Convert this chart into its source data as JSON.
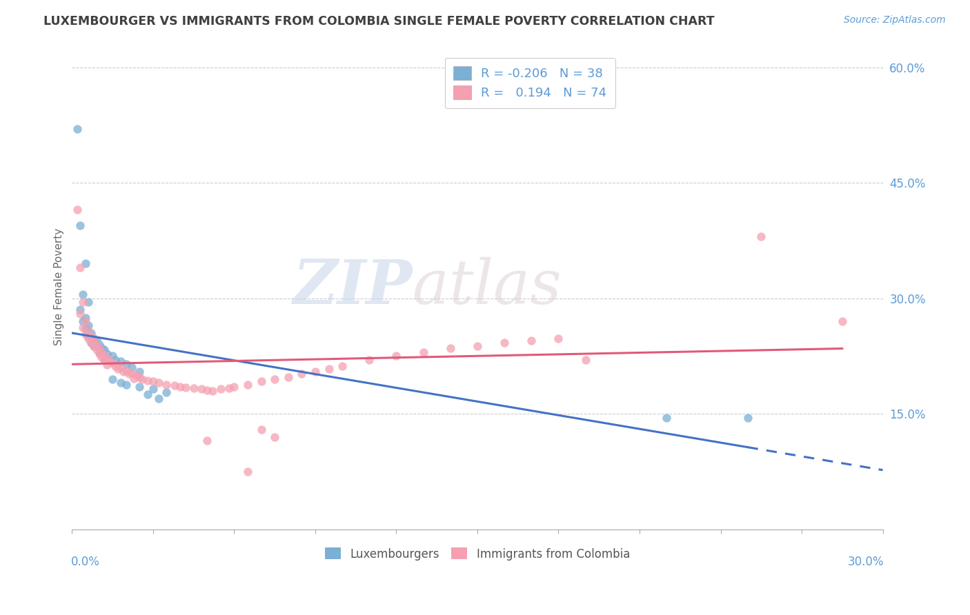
{
  "title": "LUXEMBOURGER VS IMMIGRANTS FROM COLOMBIA SINGLE FEMALE POVERTY CORRELATION CHART",
  "source": "Source: ZipAtlas.com",
  "xmin": 0.0,
  "xmax": 0.3,
  "ymin": 0.0,
  "ymax": 0.63,
  "ylabel_ticks": [
    0.0,
    0.15,
    0.3,
    0.45,
    0.6
  ],
  "ylabel_labels": [
    "",
    "15.0%",
    "30.0%",
    "45.0%",
    "60.0%"
  ],
  "watermark_zip": "ZIP",
  "watermark_atlas": "atlas",
  "blue_color": "#7bafd4",
  "pink_color": "#f4a0b0",
  "blue_line_color": "#4472c4",
  "pink_line_color": "#e05a7a",
  "blue_scatter": [
    [
      0.002,
      0.52
    ],
    [
      0.003,
      0.395
    ],
    [
      0.005,
      0.345
    ],
    [
      0.004,
      0.305
    ],
    [
      0.006,
      0.295
    ],
    [
      0.003,
      0.285
    ],
    [
      0.005,
      0.275
    ],
    [
      0.004,
      0.27
    ],
    [
      0.006,
      0.265
    ],
    [
      0.005,
      0.26
    ],
    [
      0.007,
      0.255
    ],
    [
      0.006,
      0.25
    ],
    [
      0.008,
      0.248
    ],
    [
      0.009,
      0.245
    ],
    [
      0.007,
      0.242
    ],
    [
      0.01,
      0.24
    ],
    [
      0.008,
      0.238
    ],
    [
      0.011,
      0.235
    ],
    [
      0.012,
      0.233
    ],
    [
      0.01,
      0.23
    ],
    [
      0.013,
      0.228
    ],
    [
      0.015,
      0.225
    ],
    [
      0.012,
      0.222
    ],
    [
      0.016,
      0.22
    ],
    [
      0.018,
      0.218
    ],
    [
      0.02,
      0.215
    ],
    [
      0.022,
      0.21
    ],
    [
      0.025,
      0.205
    ],
    [
      0.015,
      0.195
    ],
    [
      0.018,
      0.19
    ],
    [
      0.02,
      0.188
    ],
    [
      0.025,
      0.185
    ],
    [
      0.03,
      0.182
    ],
    [
      0.035,
      0.178
    ],
    [
      0.22,
      0.145
    ],
    [
      0.25,
      0.145
    ],
    [
      0.028,
      0.175
    ],
    [
      0.032,
      0.17
    ]
  ],
  "pink_scatter": [
    [
      0.002,
      0.415
    ],
    [
      0.003,
      0.34
    ],
    [
      0.004,
      0.295
    ],
    [
      0.003,
      0.28
    ],
    [
      0.005,
      0.27
    ],
    [
      0.004,
      0.262
    ],
    [
      0.006,
      0.258
    ],
    [
      0.005,
      0.253
    ],
    [
      0.007,
      0.25
    ],
    [
      0.006,
      0.248
    ],
    [
      0.008,
      0.245
    ],
    [
      0.007,
      0.242
    ],
    [
      0.009,
      0.24
    ],
    [
      0.008,
      0.238
    ],
    [
      0.01,
      0.235
    ],
    [
      0.009,
      0.233
    ],
    [
      0.011,
      0.23
    ],
    [
      0.01,
      0.228
    ],
    [
      0.012,
      0.226
    ],
    [
      0.011,
      0.224
    ],
    [
      0.013,
      0.222
    ],
    [
      0.012,
      0.22
    ],
    [
      0.014,
      0.218
    ],
    [
      0.015,
      0.216
    ],
    [
      0.013,
      0.214
    ],
    [
      0.016,
      0.212
    ],
    [
      0.018,
      0.21
    ],
    [
      0.017,
      0.208
    ],
    [
      0.02,
      0.206
    ],
    [
      0.019,
      0.205
    ],
    [
      0.022,
      0.203
    ],
    [
      0.021,
      0.202
    ],
    [
      0.024,
      0.2
    ],
    [
      0.025,
      0.198
    ],
    [
      0.023,
      0.196
    ],
    [
      0.026,
      0.195
    ],
    [
      0.028,
      0.193
    ],
    [
      0.03,
      0.192
    ],
    [
      0.032,
      0.19
    ],
    [
      0.035,
      0.188
    ],
    [
      0.038,
      0.187
    ],
    [
      0.04,
      0.185
    ],
    [
      0.042,
      0.184
    ],
    [
      0.045,
      0.183
    ],
    [
      0.048,
      0.182
    ],
    [
      0.05,
      0.181
    ],
    [
      0.052,
      0.18
    ],
    [
      0.055,
      0.182
    ],
    [
      0.058,
      0.183
    ],
    [
      0.06,
      0.185
    ],
    [
      0.065,
      0.188
    ],
    [
      0.07,
      0.192
    ],
    [
      0.075,
      0.195
    ],
    [
      0.08,
      0.198
    ],
    [
      0.085,
      0.202
    ],
    [
      0.09,
      0.205
    ],
    [
      0.095,
      0.208
    ],
    [
      0.1,
      0.212
    ],
    [
      0.11,
      0.22
    ],
    [
      0.12,
      0.225
    ],
    [
      0.13,
      0.23
    ],
    [
      0.14,
      0.235
    ],
    [
      0.15,
      0.238
    ],
    [
      0.16,
      0.242
    ],
    [
      0.17,
      0.245
    ],
    [
      0.18,
      0.248
    ],
    [
      0.19,
      0.22
    ],
    [
      0.255,
      0.38
    ],
    [
      0.285,
      0.27
    ],
    [
      0.05,
      0.115
    ],
    [
      0.065,
      0.075
    ],
    [
      0.07,
      0.13
    ],
    [
      0.075,
      0.12
    ]
  ]
}
